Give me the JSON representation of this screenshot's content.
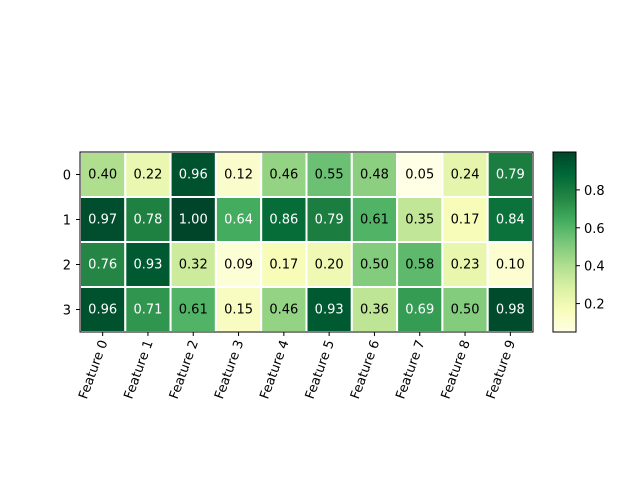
{
  "chart_data": {
    "type": "heatmap",
    "title": "",
    "xlabel": "",
    "ylabel": "",
    "x_labels": [
      "Feature 0",
      "Feature 1",
      "Feature 2",
      "Feature 3",
      "Feature 4",
      "Feature 5",
      "Feature 6",
      "Feature 7",
      "Feature 8",
      "Feature 9"
    ],
    "y_labels": [
      "0",
      "1",
      "2",
      "3"
    ],
    "values": [
      [
        0.4,
        0.22,
        0.96,
        0.12,
        0.46,
        0.55,
        0.48,
        0.05,
        0.24,
        0.79
      ],
      [
        0.97,
        0.78,
        1.0,
        0.64,
        0.86,
        0.79,
        0.61,
        0.35,
        0.17,
        0.84
      ],
      [
        0.76,
        0.93,
        0.32,
        0.09,
        0.17,
        0.2,
        0.5,
        0.58,
        0.23,
        0.1
      ],
      [
        0.96,
        0.71,
        0.61,
        0.15,
        0.46,
        0.93,
        0.36,
        0.69,
        0.5,
        0.98
      ]
    ],
    "value_format": "0.00",
    "colormap": "YlGn",
    "color_range": [
      0.05,
      1.0
    ],
    "colorbar_ticks": [
      "0.2",
      "0.4",
      "0.6",
      "0.8"
    ],
    "colorbar_tick_values": [
      0.2,
      0.4,
      0.6,
      0.8
    ],
    "x_tick_rotation_deg": 70,
    "cell_separator_color": "#ffffff",
    "text_colors": {
      "dark": "#000000",
      "light": "#ffffff"
    }
  }
}
